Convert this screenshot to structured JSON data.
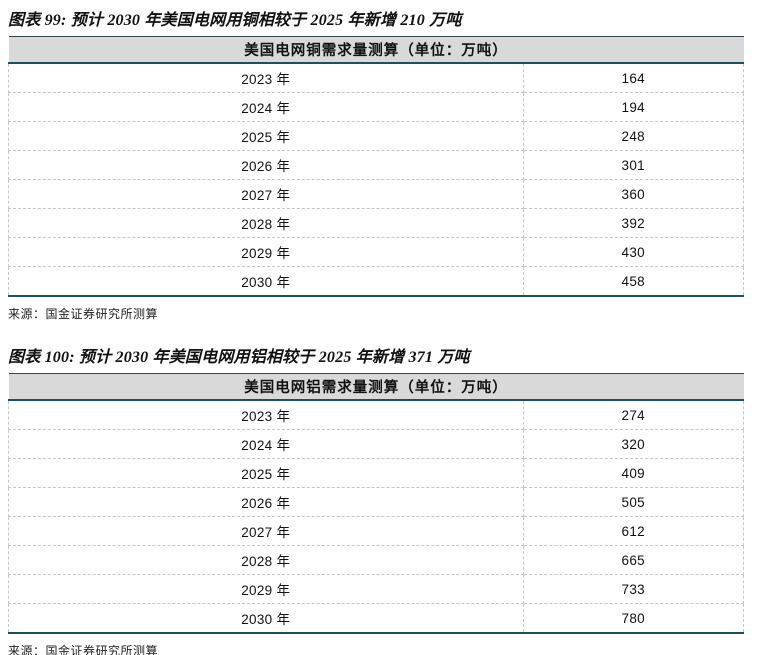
{
  "colors": {
    "accent_blue": "#1b4f63",
    "header_background": "#d9d9d9",
    "dashed_grid": "#c6c6c6"
  },
  "figure1": {
    "title": "图表 99: 预计 2030 年美国电网用铜相较于 2025 年新增 210 万吨",
    "table_header": "美国电网铜需求量测算（单位：万吨）",
    "rows": [
      {
        "year": "2023 年",
        "value": "164"
      },
      {
        "year": "2024 年",
        "value": "194"
      },
      {
        "year": "2025 年",
        "value": "248"
      },
      {
        "year": "2026 年",
        "value": "301"
      },
      {
        "year": "2027 年",
        "value": "360"
      },
      {
        "year": "2028 年",
        "value": "392"
      },
      {
        "year": "2029 年",
        "value": "430"
      },
      {
        "year": "2030 年",
        "value": "458"
      }
    ],
    "source": "来源：国金证券研究所测算"
  },
  "figure2": {
    "title": "图表 100: 预计 2030 年美国电网用铝相较于 2025 年新增 371 万吨",
    "table_header": "美国电网铝需求量测算（单位：万吨）",
    "rows": [
      {
        "year": "2023 年",
        "value": "274"
      },
      {
        "year": "2024 年",
        "value": "320"
      },
      {
        "year": "2025 年",
        "value": "409"
      },
      {
        "year": "2026 年",
        "value": "505"
      },
      {
        "year": "2027 年",
        "value": "612"
      },
      {
        "year": "2028 年",
        "value": "665"
      },
      {
        "year": "2029 年",
        "value": "733"
      },
      {
        "year": "2030 年",
        "value": "780"
      }
    ],
    "source": "来源：国金证券研究所测算"
  }
}
